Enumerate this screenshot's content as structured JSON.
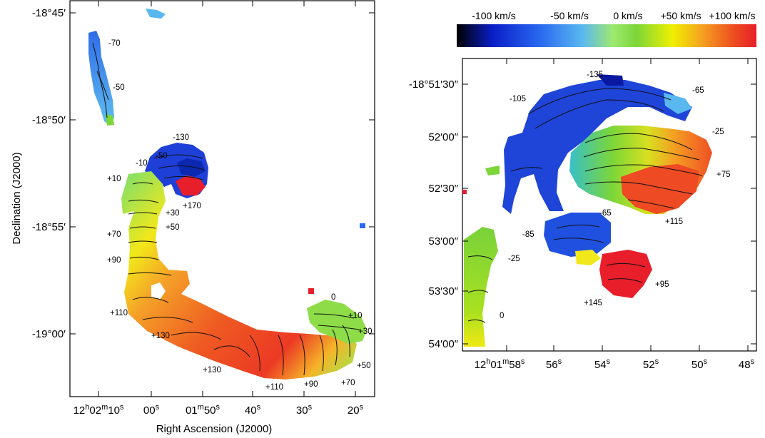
{
  "colors": {
    "colorbar_stops": [
      "#000000",
      "#0a1ec8",
      "#2a6af0",
      "#5ab8f0",
      "#9ee870",
      "#7cd638",
      "#f0f000",
      "#f5a020",
      "#ee5020",
      "#e81e2a"
    ],
    "frame": "#000000",
    "contour": "#111111"
  },
  "colorbar": {
    "labels": [
      "-100 km/s",
      "-50 km/s",
      "0 km/s",
      "+50 km/s",
      "+100 km/s"
    ],
    "values_kms": [
      -100,
      -50,
      0,
      50,
      100
    ]
  },
  "chart_data": [
    {
      "type": "heatmap",
      "panel": "left",
      "xlabel": "Right Ascension (J2000)",
      "ylabel": "Declination (J2000)",
      "x_ticks": [
        {
          "base": "12",
          "sup1": "h",
          "mid": "02",
          "sup2": "m",
          "end": "10",
          "sup3": "s"
        },
        {
          "base": "00",
          "sup1": "s"
        },
        {
          "base": "01",
          "sup1": "m",
          "mid": "50",
          "sup2": "s"
        },
        {
          "base": "40",
          "sup1": "s"
        },
        {
          "base": "30",
          "sup1": "s"
        },
        {
          "base": "20",
          "sup1": "s"
        }
      ],
      "y_ticks": [
        "-18°45′",
        "-18°50′",
        "-18°55′",
        "-19°00′"
      ],
      "contour_labels": [
        "-70",
        "-50",
        "-130",
        "-10",
        "-50",
        "+10",
        "+170",
        "+30",
        "+50",
        "+70",
        "+90",
        "+110",
        "+130",
        "+130",
        "+110",
        "+90",
        "+70",
        "+50",
        "+30",
        "+10",
        "0"
      ],
      "velocity_range_kms": [
        -135,
        170
      ]
    },
    {
      "type": "heatmap",
      "panel": "right",
      "xlabel": "",
      "ylabel": "",
      "x_ticks": [
        {
          "base": "12",
          "sup1": "h",
          "mid": "01",
          "sup2": "m",
          "end": "58",
          "sup3": "s"
        },
        {
          "base": "56",
          "sup1": "s"
        },
        {
          "base": "54",
          "sup1": "s"
        },
        {
          "base": "52",
          "sup1": "s"
        },
        {
          "base": "50",
          "sup1": "s"
        },
        {
          "base": "48",
          "sup1": "s"
        }
      ],
      "y_ticks": [
        "-18°51′30″",
        "52′00″",
        "52′30″",
        "53′00″",
        "53′30″",
        "54′00″"
      ],
      "contour_labels": [
        "-135",
        "-105",
        "-65",
        "-25",
        "+75",
        "+115",
        "-65",
        "-85",
        "-25",
        "+95",
        "+145",
        "0"
      ],
      "velocity_range_kms": [
        -135,
        145
      ]
    }
  ]
}
